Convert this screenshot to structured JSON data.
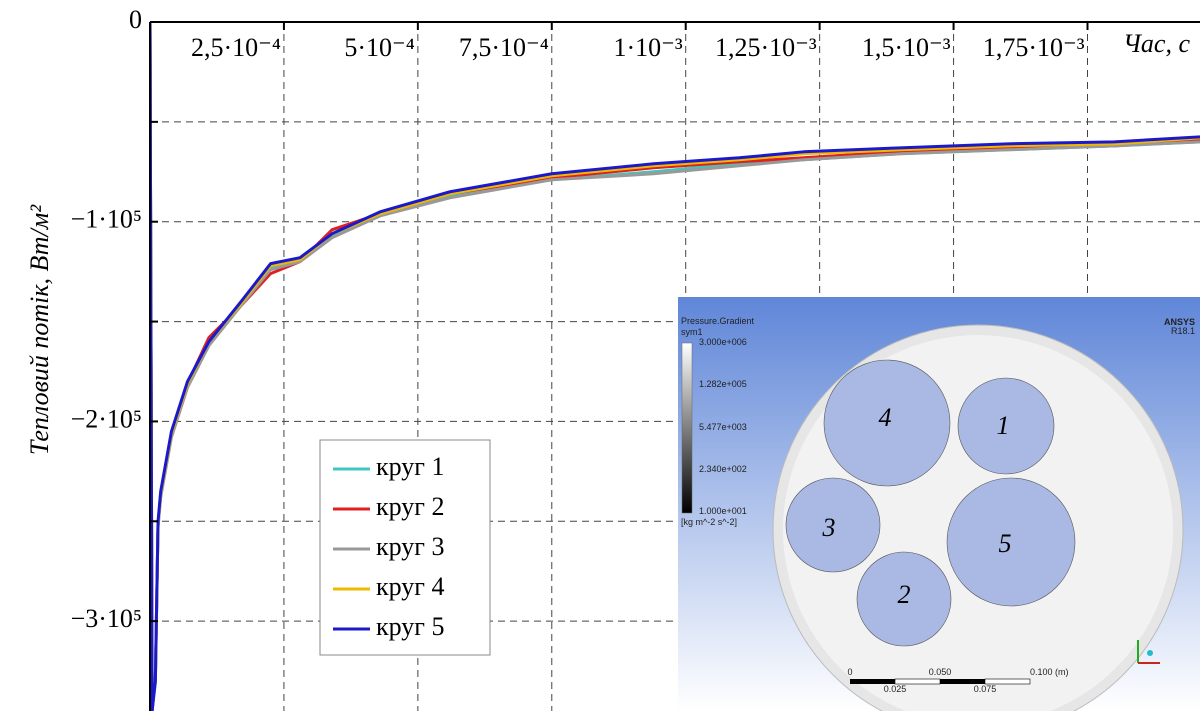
{
  "chart_data": {
    "type": "line",
    "x_label": "Час, с",
    "y_label": "Тепловий потік, Вт/м²",
    "x": [
      0,
      4e-06,
      1e-05,
      1.5e-05,
      2e-05,
      4e-05,
      7e-05,
      0.00011,
      0.00017,
      0.000225,
      0.00028,
      0.00034,
      0.00043,
      0.00056,
      0.00075,
      0.00094,
      0.0011,
      0.00122,
      0.0014,
      0.0016,
      0.0018,
      0.00196
    ],
    "series": [
      {
        "name": "круг 1",
        "color": "#3cc8c0",
        "values": [
          0,
          -344000,
          -331000,
          -251000,
          -236000,
          -206000,
          -182000,
          -161000,
          -141000,
          -123000,
          -119000,
          -107000,
          -97000,
          -87000,
          -79000,
          -75000,
          -71000,
          -69000,
          -66000,
          -64000,
          -62000,
          -60000
        ]
      },
      {
        "name": "круг 2",
        "color": "#e02020",
        "values": [
          0,
          -345000,
          -328000,
          -252000,
          -237000,
          -207000,
          -181000,
          -158000,
          -142000,
          -126000,
          -120000,
          -104000,
          -96000,
          -86000,
          -78000,
          -73000,
          -70000,
          -68000,
          -65000,
          -63000,
          -62000,
          -59000
        ]
      },
      {
        "name": "круг 3",
        "color": "#999999",
        "values": [
          0,
          -343000,
          -330000,
          -253000,
          -238000,
          -208000,
          -183000,
          -162000,
          -142000,
          -124000,
          -120000,
          -108000,
          -97000,
          -88000,
          -79000,
          -76000,
          -72000,
          -69000,
          -66000,
          -64000,
          -62000,
          -60000
        ]
      },
      {
        "name": "круг 4",
        "color": "#f0b800",
        "values": [
          0,
          -344000,
          -329000,
          -251000,
          -236000,
          -206000,
          -181000,
          -160000,
          -141000,
          -122000,
          -119000,
          -106000,
          -96000,
          -86000,
          -77000,
          -72000,
          -69000,
          -66000,
          -64000,
          -62000,
          -61000,
          -58000
        ]
      },
      {
        "name": "круг 5",
        "color": "#1a1acc",
        "values": [
          0,
          -345000,
          -330000,
          -250000,
          -235000,
          -205000,
          -180000,
          -160000,
          -140000,
          -121000,
          -118000,
          -106000,
          -95000,
          -85000,
          -76000,
          -71000,
          -68000,
          -65000,
          -63000,
          -61000,
          -60000,
          -57500
        ]
      }
    ],
    "xlim": [
      0,
      0.00196
    ],
    "ylim": [
      -345000,
      0
    ],
    "xticks": [
      {
        "value": 0.00025,
        "label": "2,5·10⁻⁴"
      },
      {
        "value": 0.0005,
        "label": "5·10⁻⁴"
      },
      {
        "value": 0.00075,
        "label": "7,5·10⁻⁴"
      },
      {
        "value": 0.001,
        "label": "1·10⁻³"
      },
      {
        "value": 0.00125,
        "label": "1,25·10⁻³"
      },
      {
        "value": 0.0015,
        "label": "1,5·10⁻³"
      },
      {
        "value": 0.00175,
        "label": "1,75·10⁻³"
      }
    ],
    "yticks": [
      0,
      {
        "value": -100000,
        "label": "−1·10⁵"
      },
      {
        "value": -200000,
        "label": "−2·10⁵"
      },
      {
        "value": -300000,
        "label": "−3·10⁵"
      }
    ],
    "y_minor_ticks": [
      -50000,
      -150000,
      -250000
    ],
    "grid": true,
    "legend_position": "bottom"
  },
  "inset": {
    "title": "Pressure.Gradient",
    "subtitle": "sym1",
    "colorbar_labels": [
      "3.000e+006",
      "1.282e+005",
      "5.477e+003",
      "2.340e+002",
      "1.000e+001"
    ],
    "unit": "[kg m^-2 s^-2]",
    "brand": "ANSYS",
    "version": "R18.1",
    "scale_top": [
      "0",
      "0.050",
      "0.100  (m)"
    ],
    "scale_bottom": [
      "0.025",
      "0.075"
    ],
    "circles": [
      "4",
      "1",
      "3",
      "5",
      "2"
    ]
  }
}
